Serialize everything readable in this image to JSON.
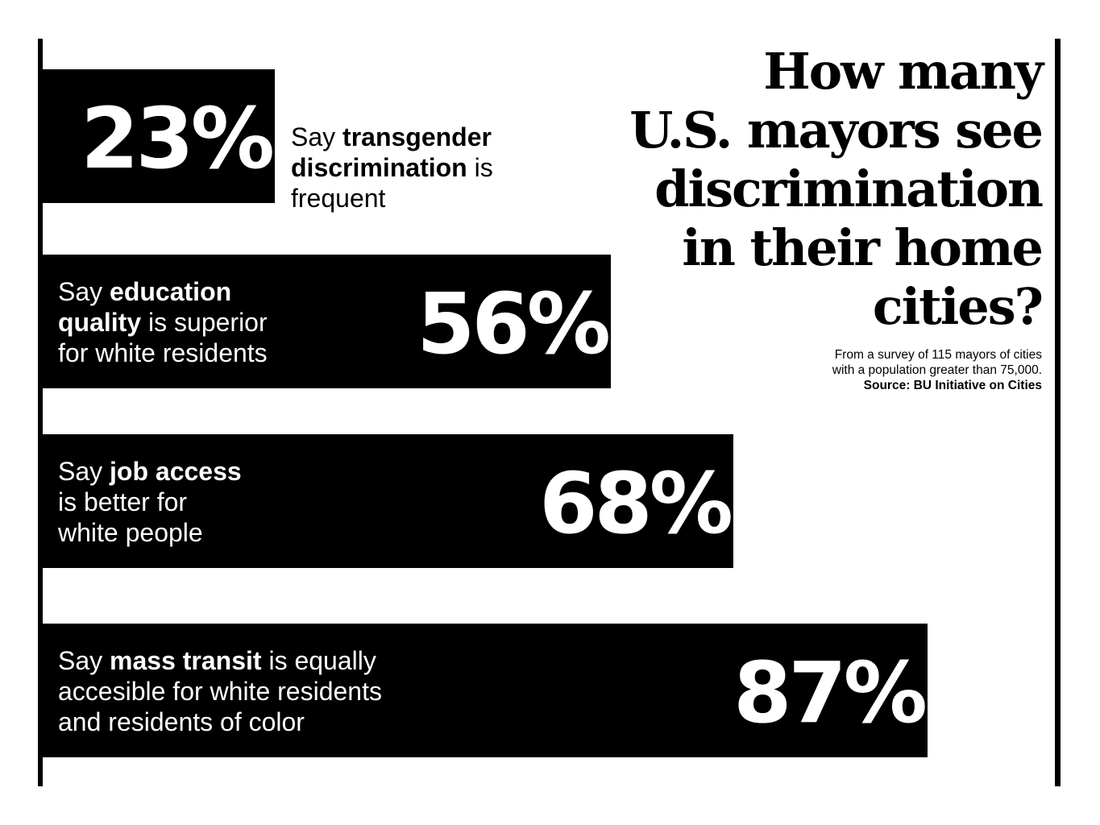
{
  "title_lines": [
    "How many",
    "U.S. mayors see",
    "discrimination",
    "in their home",
    "cities?"
  ],
  "note_lines": [
    "From a survey of 115 mayors of cities",
    "with a population greater than 75,000."
  ],
  "source": "Source: BU Initiative on Cities",
  "chart_data": {
    "type": "bar",
    "orientation": "horizontal",
    "unit": "%",
    "xlim": [
      0,
      100
    ],
    "grid": false,
    "bars": [
      {
        "value": 23,
        "label": "23%",
        "label_position": "inside",
        "text_lines": [
          [
            {
              "t": "Say ",
              "b": false
            },
            {
              "t": "transgender",
              "b": true
            }
          ],
          [
            {
              "t": "discrimination",
              "b": true
            },
            {
              "t": " is",
              "b": false
            }
          ],
          [
            {
              "t": "frequent",
              "b": false
            }
          ]
        ]
      },
      {
        "value": 56,
        "label": "56%",
        "label_position": "inside",
        "text_lines": [
          [
            {
              "t": "Say ",
              "b": false
            },
            {
              "t": "education",
              "b": true
            }
          ],
          [
            {
              "t": "quality",
              "b": true
            },
            {
              "t": " is superior",
              "b": false
            }
          ],
          [
            {
              "t": "for white residents",
              "b": false
            }
          ]
        ]
      },
      {
        "value": 68,
        "label": "68%",
        "label_position": "inside",
        "text_lines": [
          [
            {
              "t": "Say ",
              "b": false
            },
            {
              "t": "job access",
              "b": true
            }
          ],
          [
            {
              "t": "is better for",
              "b": false
            }
          ],
          [
            {
              "t": "white people",
              "b": false
            }
          ]
        ]
      },
      {
        "value": 87,
        "label": "87%",
        "label_position": "inside",
        "text_lines": [
          [
            {
              "t": "Say ",
              "b": false
            },
            {
              "t": "mass transit",
              "b": true
            },
            {
              "t": " is equally",
              "b": false
            }
          ],
          [
            {
              "t": "accesible for white residents",
              "b": false
            }
          ],
          [
            {
              "t": "and residents of color",
              "b": false
            }
          ]
        ]
      }
    ]
  }
}
